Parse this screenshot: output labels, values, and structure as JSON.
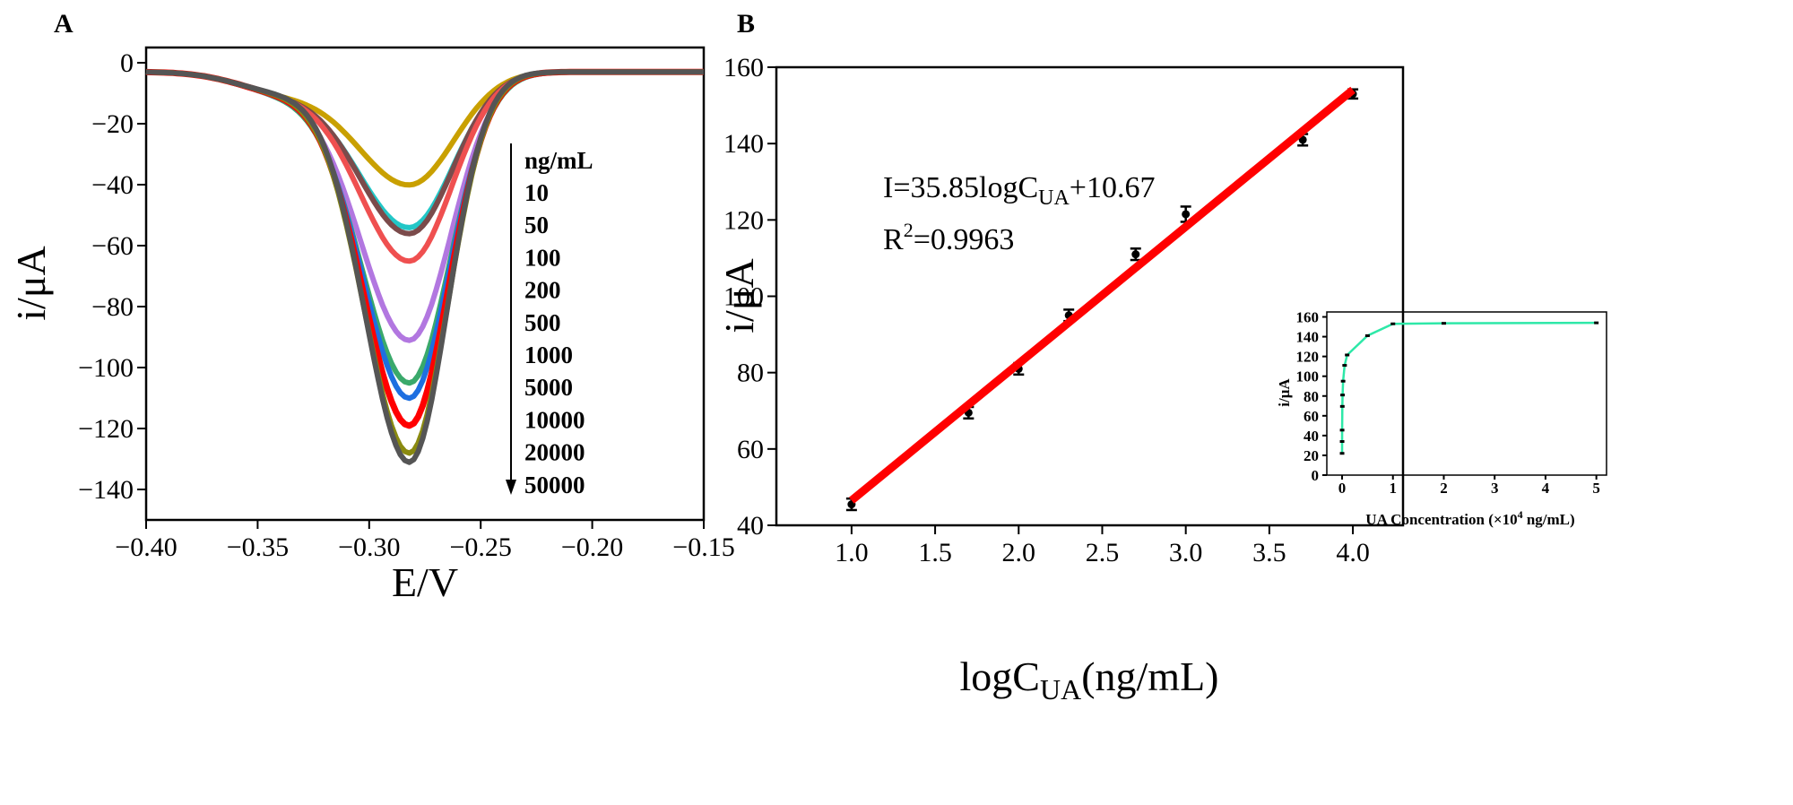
{
  "chart_data": [
    {
      "panel": "A",
      "type": "line",
      "xlabel": "E/V",
      "ylabel": "i/μA",
      "xlim": [
        -0.4,
        -0.15
      ],
      "ylim": [
        -150,
        5
      ],
      "xticks": [
        "−0.40",
        "−0.35",
        "−0.30",
        "−0.25",
        "−0.20",
        "−0.15"
      ],
      "xtick_values": [
        -0.4,
        -0.35,
        -0.3,
        -0.25,
        -0.2,
        -0.15
      ],
      "yticks": [
        "0",
        "−20",
        "−40",
        "−60",
        "−80",
        "−100",
        "−120",
        "−140"
      ],
      "ytick_values": [
        0,
        -20,
        -40,
        -60,
        -80,
        -100,
        -120,
        -140
      ],
      "legend_title": "ng/mL",
      "legend_placement": "right, arrow pointing down",
      "peak_potential": -0.282,
      "series": [
        {
          "name": "10",
          "peak_current": -40,
          "color": "#c9a000"
        },
        {
          "name": "50",
          "peak_current": -54,
          "color": "#22c7c7"
        },
        {
          "name": "100",
          "peak_current": -56,
          "color": "#7b4b4b"
        },
        {
          "name": "200",
          "peak_current": -65,
          "color": "#ef5050"
        },
        {
          "name": "500",
          "peak_current": -91,
          "color": "#b277e0"
        },
        {
          "name": "1000",
          "peak_current": -105,
          "color": "#3aa96b"
        },
        {
          "name": "5000",
          "peak_current": -110,
          "color": "#1e6fe0"
        },
        {
          "name": "10000",
          "peak_current": -119,
          "color": "#ff0000"
        },
        {
          "name": "20000",
          "peak_current": -128,
          "color": "#8a8a10"
        },
        {
          "name": "50000",
          "peak_current": -131,
          "color": "#555555"
        }
      ]
    },
    {
      "panel": "B",
      "type": "scatter",
      "xlabel": "logC",
      "xlabel_sub": "UA",
      "xlabel_suffix": "(ng/mL)",
      "ylabel": "i/μA",
      "xlim": [
        0.55,
        4.3
      ],
      "ylim": [
        40,
        160
      ],
      "xticks": [
        "1.0",
        "1.5",
        "2.0",
        "2.5",
        "3.0",
        "3.5",
        "4.0"
      ],
      "xtick_values": [
        1.0,
        1.5,
        2.0,
        2.5,
        3.0,
        3.5,
        4.0
      ],
      "yticks": [
        "40",
        "60",
        "80",
        "100",
        "120",
        "140",
        "160"
      ],
      "ytick_values": [
        40,
        60,
        80,
        100,
        120,
        140,
        160
      ],
      "x": [
        1.0,
        1.7,
        2.0,
        2.3,
        2.7,
        3.0,
        3.7,
        4.0
      ],
      "y": [
        45.5,
        69.5,
        81,
        95,
        111,
        121.5,
        141,
        153
      ],
      "error": [
        1.5,
        1.5,
        1.5,
        1.5,
        1.5,
        2,
        1.5,
        1.2
      ],
      "fit": {
        "slope": 35.85,
        "intercept": 10.67,
        "color": "#ff0000"
      },
      "equation": {
        "prefix": "I=35.85logC",
        "sub": "UA",
        "suffix": "+10.67"
      },
      "r2": {
        "prefix": "R",
        "sup": "2",
        "suffix": "=0.9963"
      },
      "inset": {
        "type": "line",
        "xlabel": "UA  Concentration (×10",
        "xlabel_sup": "4",
        "xlabel_suffix": " ng/mL)",
        "ylabel": "i/μA",
        "xlim": [
          -0.3,
          5.2
        ],
        "ylim": [
          0,
          165
        ],
        "xticks": [
          "0",
          "1",
          "2",
          "3",
          "4",
          "5"
        ],
        "xtick_values": [
          0,
          1,
          2,
          3,
          4,
          5
        ],
        "yticks": [
          "0",
          "20",
          "40",
          "60",
          "80",
          "100",
          "120",
          "140",
          "160"
        ],
        "ytick_values": [
          0,
          20,
          40,
          60,
          80,
          100,
          120,
          140,
          160
        ],
        "color": "#2ee8a8",
        "x": [
          0.0001,
          0.0005,
          0.001,
          0.005,
          0.01,
          0.02,
          0.05,
          0.1,
          0.5,
          1,
          2,
          5
        ],
        "y": [
          22,
          34,
          45.5,
          69.5,
          81,
          95,
          111,
          121.5,
          141,
          153,
          153.5,
          154
        ]
      }
    }
  ],
  "panels": {
    "a": "A",
    "b": "B"
  }
}
